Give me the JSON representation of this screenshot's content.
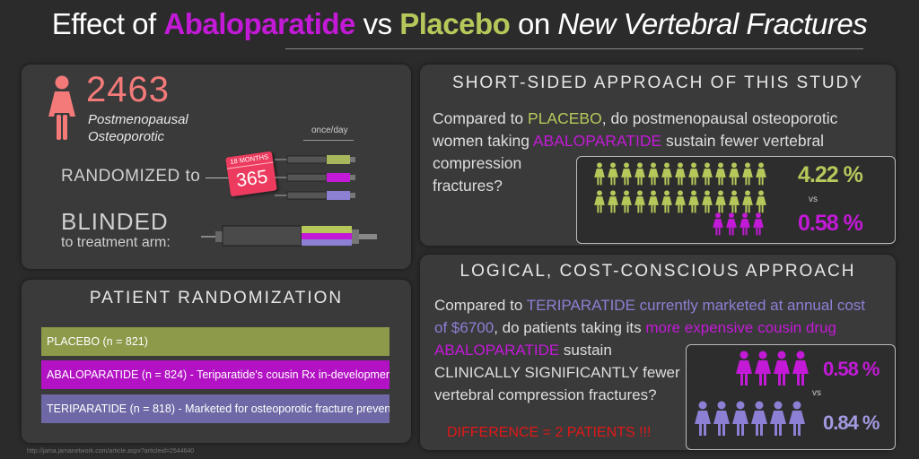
{
  "title": {
    "part1": "Effect of ",
    "drug": "Abaloparatide",
    "part2": " vs ",
    "placebo": "Placebo",
    "part3": " on ",
    "part4": "New Vertebral Fractures"
  },
  "colors": {
    "placebo": "#b7c85b",
    "abaloparatide": "#c21ad6",
    "teriparatide": "#8b80d4",
    "salmon": "#f47a7a",
    "alert": "#e01818"
  },
  "design": {
    "count": "2463",
    "population_line1": "Postmenopausal",
    "population_line2": "Osteoporotic",
    "randomized": "RANDOMIZED to",
    "dose_freq": "once/day",
    "calendar_top": "18 MONTHS",
    "calendar_days": "365",
    "blinded": "BLINDED",
    "blinded_sub": "to treatment arm:",
    "icons": [
      "woman-icon",
      "calendar-icon",
      "syringe-icon"
    ]
  },
  "randomization": {
    "heading": "PATIENT RANDOMIZATION",
    "arms": [
      {
        "label": "PLACEBO (n = 821)",
        "color": "#8c9a4a"
      },
      {
        "label": "ABALOPARATIDE (n = 824) - Teriparatide's cousin Rx in-development",
        "color": "#b312c4"
      },
      {
        "label": "TERIPARATIDE (n = 818) - Marketed for osteoporotic fracture prevention",
        "color": "#6e69a6"
      }
    ]
  },
  "short_sided": {
    "heading": "SHORT-SIDED APPROACH OF THIS STUDY",
    "q1": "Compared to ",
    "q_placebo": "PLACEBO",
    "q2": ", do postmenopausal osteoporotic",
    "q3": "women taking ",
    "q_abalo": "ABALOPARATIDE",
    "q4": " sustain fewer vertebral",
    "q5": "compression",
    "q6": "fractures?",
    "placebo_pct": "4.22 %",
    "vs": "vs",
    "abalo_pct": "0.58 %",
    "placebo_icon_count": 26,
    "abalo_icon_count": 4
  },
  "cost_conscious": {
    "heading": "LOGICAL, COST-CONSCIOUS APPROACH",
    "l1a": "Compared to ",
    "l1b": "TERIPARATIDE currently marketed at annual cost",
    "l2a": "of $6700",
    "l2b": ", do patients taking its ",
    "l2c": "more expensive cousin drug",
    "l3a": "ABALOPARATIDE",
    "l3b": " sustain",
    "l4": "CLINICALLY SIGNIFICANTLY fewer",
    "l5": "vertebral compression fractures?",
    "difference": "DIFFERENCE = 2 PATIENTS !!!",
    "abalo_pct": "0.58 %",
    "vs": "vs",
    "teri_pct": "0.84 %",
    "abalo_icon_count": 4,
    "teri_icon_count": 6
  },
  "source": "http://jama.jamanetwork.com/article.aspx?articleid=2544640"
}
